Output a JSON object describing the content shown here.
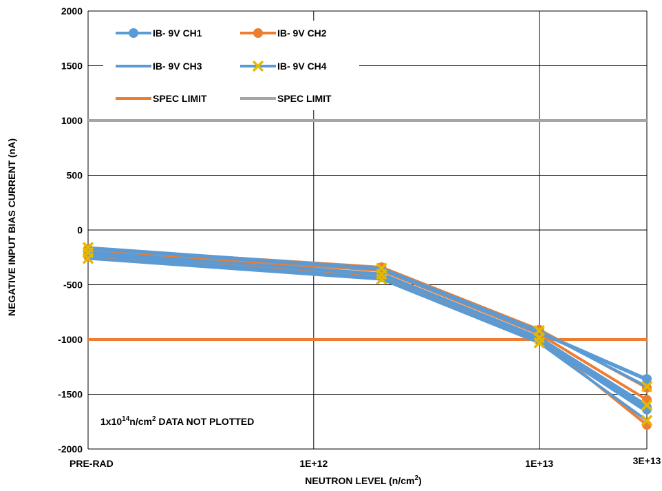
{
  "chart_data": {
    "type": "line",
    "xlabel": "NEUTRON LEVEL (n/cm²)",
    "xlabel_main": "NEUTRON LEVEL (n/cm",
    "xlabel_sup": "2",
    "xlabel_end": ")",
    "ylabel": "NEGATIVE INPUT BIAS CURRENT (nA)",
    "ylim": [
      -2000,
      2000
    ],
    "y_ticks": [
      "2000",
      "1500",
      "1000",
      "500",
      "0",
      "-500",
      "-1000",
      "-1500",
      "-2000"
    ],
    "x_scale": "log",
    "x_tick_labels": [
      "PRE-RAD",
      "1E+12",
      "1E+13",
      "3E+13"
    ],
    "x_positions": [
      "PRE-RAD",
      "2E+12",
      "1E+13",
      "3E+13"
    ],
    "grid": true,
    "legend_position": "top-left",
    "series": [
      {
        "name": "IB- 9V CH1",
        "color": "#5B9BD5",
        "marker": "circle",
        "values": [
          [
            -200,
            -180,
            -220
          ],
          [
            -400,
            -370,
            -430
          ],
          [
            -980,
            -930,
            -1010
          ],
          [
            -1620,
            -1360,
            -1640
          ]
        ]
      },
      {
        "name": "IB- 9V CH2",
        "color": "#ED7D31",
        "marker": "circle",
        "values": [
          [
            -190,
            -170,
            -240
          ],
          [
            -370,
            -340,
            -420
          ],
          [
            -950,
            -910,
            -990
          ],
          [
            -1550,
            -1440,
            -1780
          ]
        ]
      },
      {
        "name": "IB- 9V CH3",
        "color": "#5B9BD5",
        "marker": "none",
        "values": [
          [
            -200,
            -170,
            -230
          ],
          [
            -410,
            -360,
            -440
          ],
          [
            -990,
            -940,
            -1020
          ],
          [
            -1620,
            -1370,
            -1660
          ]
        ]
      },
      {
        "name": "IB- 9V CH4",
        "color": "#5B9BD5",
        "marker_color": "#E6B800",
        "marker": "x",
        "values": [
          [
            -205,
            -160,
            -260
          ],
          [
            -405,
            -350,
            -450
          ],
          [
            -985,
            -920,
            -1030
          ],
          [
            -1600,
            -1430,
            -1740
          ]
        ]
      }
    ],
    "spec_limits": [
      {
        "name": "SPEC LIMIT",
        "color": "#ED7D31",
        "value": -1000
      },
      {
        "name": "SPEC LIMIT",
        "color": "#A5A5A5",
        "value": 1000
      }
    ],
    "annotation": {
      "main": "1x10",
      "sup": "14",
      "rest": "n/cm",
      "sup2": "2",
      "tail": " DATA NOT PLOTTED"
    }
  }
}
